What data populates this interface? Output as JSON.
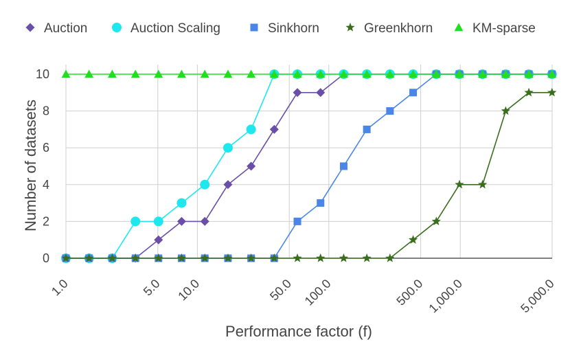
{
  "chart_data": {
    "type": "line",
    "title": "",
    "xlabel": "Performance factor (f)",
    "ylabel": "Number of datasets",
    "xscale": "log",
    "xlim": [
      1,
      5000
    ],
    "ylim": [
      0,
      10
    ],
    "grid": true,
    "legend_position": "top",
    "x": [
      1,
      1.5,
      2.25,
      3.38,
      5.06,
      7.59,
      11.39,
      17.09,
      25.63,
      38.44,
      57.67,
      86.5,
      129.75,
      194.62,
      291.93,
      437.89,
      656.84,
      985.26,
      1477.89,
      2216.84,
      3325.26,
      4987.89
    ],
    "x_ticks": [
      {
        "value": 1,
        "label": "1.0"
      },
      {
        "value": 5,
        "label": "5.0"
      },
      {
        "value": 10,
        "label": "10.0"
      },
      {
        "value": 50,
        "label": "50.0"
      },
      {
        "value": 100,
        "label": "100.0"
      },
      {
        "value": 500,
        "label": "500.0"
      },
      {
        "value": 1000,
        "label": "1,000.0"
      },
      {
        "value": 5000,
        "label": "5,000.0"
      }
    ],
    "y_ticks": [
      0,
      2,
      4,
      6,
      8,
      10
    ],
    "series": [
      {
        "name": "Auction",
        "color": "#6a4fa8",
        "marker": "diamond",
        "values": [
          0,
          0,
          0,
          0,
          1,
          2,
          2,
          4,
          5,
          7,
          9,
          9,
          10,
          10,
          10,
          10,
          10,
          10,
          10,
          10,
          10,
          10
        ]
      },
      {
        "name": "Auction Scaling",
        "color": "#1ee8ee",
        "marker": "circle",
        "values": [
          0,
          0,
          0,
          2,
          2,
          3,
          4,
          6,
          7,
          10,
          10,
          10,
          10,
          10,
          10,
          10,
          10,
          10,
          10,
          10,
          10,
          10
        ]
      },
      {
        "name": "Sinkhorn",
        "color": "#4a86e8",
        "marker": "square",
        "values": [
          0,
          0,
          0,
          0,
          0,
          0,
          0,
          0,
          0,
          0,
          2,
          3,
          5,
          7,
          8,
          9,
          10,
          10,
          10,
          10,
          10,
          10
        ]
      },
      {
        "name": "Greenkhorn",
        "color": "#386e1d",
        "marker": "star",
        "values": [
          0,
          0,
          0,
          0,
          0,
          0,
          0,
          0,
          0,
          0,
          0,
          0,
          0,
          0,
          0,
          1,
          2,
          4,
          4,
          8,
          9,
          9
        ]
      },
      {
        "name": "KM-sparse",
        "color": "#22dd22",
        "marker": "triangle",
        "values": [
          10,
          10,
          10,
          10,
          10,
          10,
          10,
          10,
          10,
          10,
          10,
          10,
          10,
          10,
          10,
          10,
          10,
          10,
          10,
          10,
          10,
          10
        ]
      }
    ]
  }
}
